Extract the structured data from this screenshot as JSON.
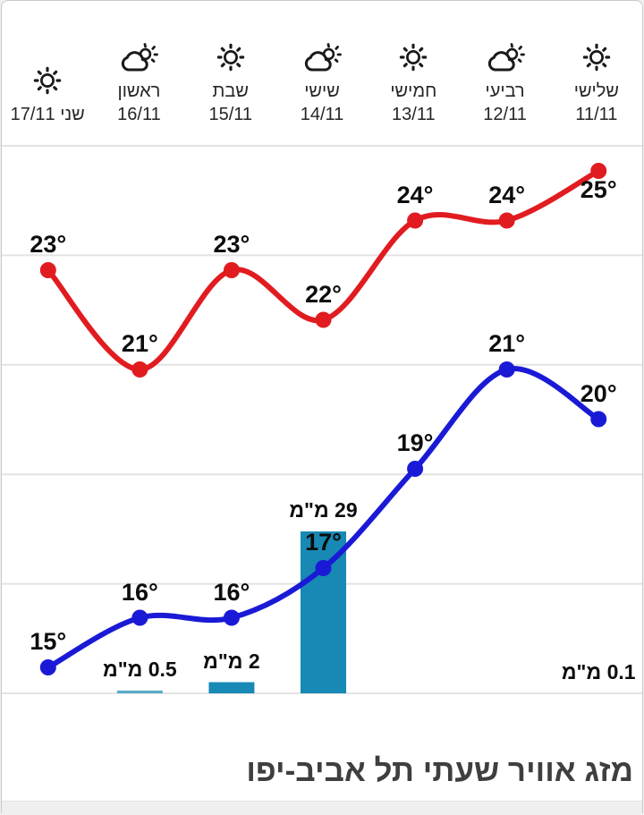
{
  "title": "מזג אוויר שעתי תל אביב-יפו",
  "header": {
    "days": [
      {
        "name": "שלישי",
        "date": "11/11",
        "icon": "sun",
        "compact": false
      },
      {
        "name": "רביעי",
        "date": "12/11",
        "icon": "sun-cloud",
        "compact": false
      },
      {
        "name": "חמישי",
        "date": "13/11",
        "icon": "sun",
        "compact": false
      },
      {
        "name": "שישי",
        "date": "14/11",
        "icon": "sun-cloud",
        "compact": false
      },
      {
        "name": "שבת",
        "date": "15/11",
        "icon": "sun",
        "compact": false
      },
      {
        "name": "ראשון",
        "date": "16/11",
        "icon": "sun-cloud",
        "compact": false
      },
      {
        "name": "שני",
        "date": "17/11",
        "icon": "sun",
        "compact": true
      }
    ]
  },
  "chart_data": {
    "type": "line+bar",
    "title": "מזג אוויר שעתי תל אביב-יפו",
    "categories": [
      "11/11",
      "12/11",
      "13/11",
      "14/11",
      "15/11",
      "16/11",
      "17/11"
    ],
    "day_names": [
      "שלישי",
      "רביעי",
      "חמישי",
      "שישי",
      "שבת",
      "ראשון",
      "שני"
    ],
    "grid": true,
    "legend_position": "none",
    "ylim_temp": [
      14,
      26
    ],
    "series": [
      {
        "name": "max-temp",
        "type": "line",
        "color": "#e11c20",
        "unit": "°",
        "values": [
          25,
          24,
          24,
          22,
          23,
          21,
          23
        ],
        "labels": [
          "25°",
          "24°",
          "24°",
          "22°",
          "23°",
          "21°",
          "23°"
        ]
      },
      {
        "name": "min-temp",
        "type": "line",
        "color": "#1a1ad6",
        "unit": "°",
        "values": [
          20,
          21,
          19,
          17,
          16,
          16,
          15
        ],
        "labels": [
          "20°",
          "21°",
          "19°",
          "17°",
          "16°",
          "16°",
          "15°"
        ]
      }
    ],
    "precipitation": {
      "name": "precipitation",
      "type": "bar",
      "color": "#1789b4",
      "color_small_bar": "#5aabca",
      "unit": "מ\"מ",
      "values": [
        0.1,
        null,
        null,
        29,
        2,
        0.5,
        null
      ],
      "labels": [
        "0.1 מ\"מ",
        null,
        null,
        "29 מ\"מ",
        "2 מ\"מ",
        "0.5 מ\"מ",
        null
      ]
    },
    "colors": {
      "gridline": "#e3e3e3",
      "label_text": "#0d0d0d",
      "title_text": "#3f3f3f",
      "icon_stroke": "#1a1a1a"
    }
  }
}
